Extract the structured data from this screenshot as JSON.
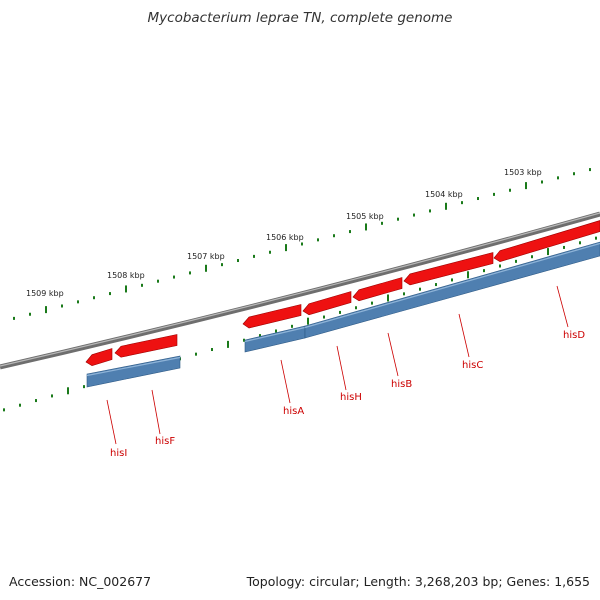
{
  "title": "Mycobacterium leprae TN, complete genome",
  "footer": {
    "accession": "Accession: NC_002677",
    "stats": "Topology: circular; Length: 3,268,203 bp; Genes: 1,655"
  },
  "colors": {
    "backbone": "#7a7a7a",
    "tick": "#1a7a1a",
    "gene_fill": "#ee1111",
    "cds_fill": "#4f7fb0",
    "label": "#cc0000"
  },
  "scale_labels": [
    "1509 kbp",
    "1508 kbp",
    "1507 kbp",
    "1506 kbp",
    "1505 kbp",
    "1504 kbp",
    "1503 kbp"
  ],
  "genes": [
    {
      "name": "hisI"
    },
    {
      "name": "hisF"
    },
    {
      "name": "hisA"
    },
    {
      "name": "hisH"
    },
    {
      "name": "hisB"
    },
    {
      "name": "hisC"
    },
    {
      "name": "hisD"
    }
  ]
}
